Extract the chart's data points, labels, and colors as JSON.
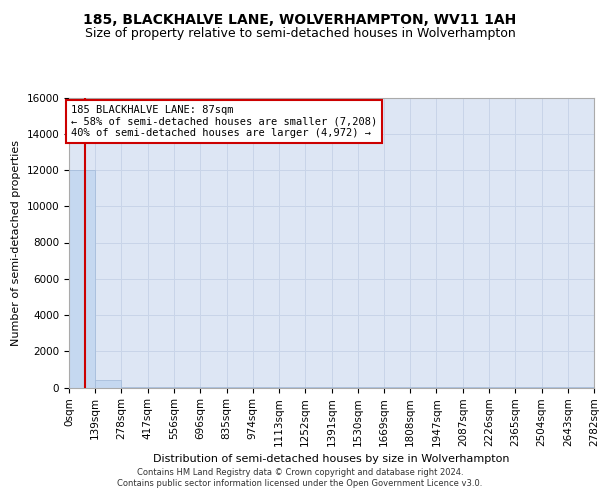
{
  "title": "185, BLACKHALVE LANE, WOLVERHAMPTON, WV11 1AH",
  "subtitle": "Size of property relative to semi-detached houses in Wolverhampton",
  "xlabel": "Distribution of semi-detached houses by size in Wolverhampton",
  "ylabel": "Number of semi-detached properties",
  "footer_line1": "Contains HM Land Registry data © Crown copyright and database right 2024.",
  "footer_line2": "Contains public sector information licensed under the Open Government Licence v3.0.",
  "bar_edges": [
    0,
    139,
    278,
    417,
    556,
    696,
    835,
    974,
    1113,
    1252,
    1391,
    1530,
    1669,
    1808,
    1947,
    2087,
    2226,
    2365,
    2504,
    2643,
    2782
  ],
  "bar_heights": [
    12000,
    400,
    50,
    20,
    12,
    8,
    6,
    5,
    4,
    3,
    3,
    2,
    2,
    2,
    1,
    1,
    1,
    1,
    1,
    1
  ],
  "bar_color": "#c5d8f0",
  "bar_edge_color": "#a0b8d8",
  "property_size": 87,
  "property_line_color": "#cc0000",
  "annotation_text": "185 BLACKHALVE LANE: 87sqm\n← 58% of semi-detached houses are smaller (7,208)\n40% of semi-detached houses are larger (4,972) →",
  "annotation_box_color": "#ffffff",
  "annotation_box_edge": "#cc0000",
  "ylim": [
    0,
    16000
  ],
  "yticks": [
    0,
    2000,
    4000,
    6000,
    8000,
    10000,
    12000,
    14000,
    16000
  ],
  "tick_labels": [
    "0sqm",
    "139sqm",
    "278sqm",
    "417sqm",
    "556sqm",
    "696sqm",
    "835sqm",
    "974sqm",
    "1113sqm",
    "1252sqm",
    "1391sqm",
    "1530sqm",
    "1669sqm",
    "1808sqm",
    "1947sqm",
    "2087sqm",
    "2226sqm",
    "2365sqm",
    "2504sqm",
    "2643sqm",
    "2782sqm"
  ],
  "grid_color": "#c8d4e8",
  "bg_color": "#dde6f4",
  "title_fontsize": 10,
  "subtitle_fontsize": 9,
  "axis_label_fontsize": 8,
  "tick_fontsize": 7.5,
  "ylabel_fontsize": 8
}
